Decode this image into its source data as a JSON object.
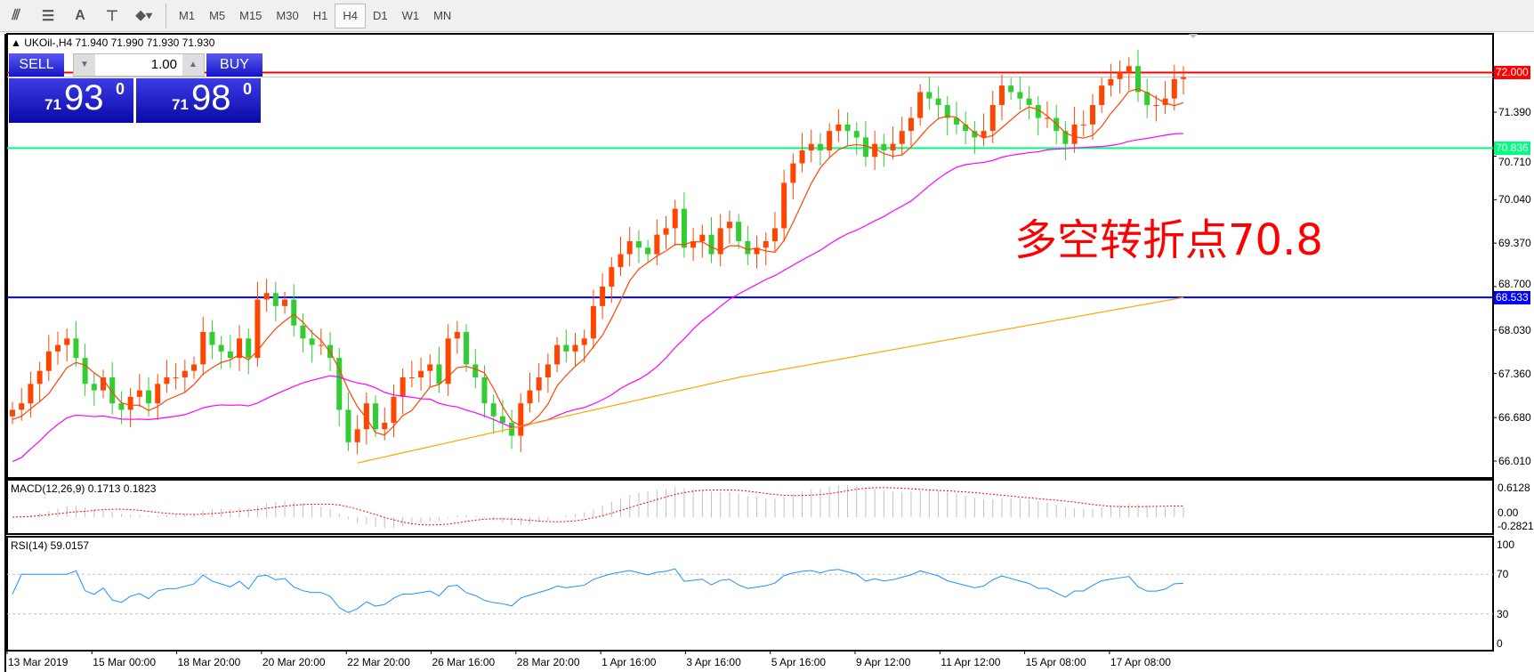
{
  "toolbar": {
    "icons": [
      "indicators-icon",
      "fibonacci-icon",
      "text-icon",
      "text-label-icon",
      "arrows-icon"
    ],
    "text_icon": "A",
    "timeframes": [
      "M1",
      "M5",
      "M15",
      "M30",
      "H1",
      "H4",
      "D1",
      "W1",
      "MN"
    ],
    "active": "H4"
  },
  "chart": {
    "header": "UKOil-,H4  71.940 71.990 71.930 71.930",
    "symbol": "UKOil-",
    "period": "H4"
  },
  "trade": {
    "sell": "SELL",
    "buy": "BUY",
    "lot": "1.00",
    "sell_small": "71",
    "sell_big": "93",
    "sell_sup": "0",
    "buy_small": "71",
    "buy_big": "98",
    "buy_sup": "0"
  },
  "price_axis": {
    "ticks": [
      "71.390",
      "70.710",
      "70.040",
      "69.370",
      "68.700",
      "68.030",
      "67.360",
      "66.680",
      "66.010"
    ]
  },
  "lines": [
    {
      "label": "72.000",
      "value": 72.0,
      "color": "#ff0000"
    },
    {
      "label": "70.836",
      "value": 70.836,
      "color": "#00ff7f"
    },
    {
      "label": "68.533",
      "value": 68.533,
      "color": "#0000ff"
    }
  ],
  "annotation": "多空转折点70.8",
  "macd": {
    "label": "MACD(12,26,9) 0.1713 0.1823",
    "ticks": [
      "0.6128",
      "0.00",
      "-0.2821"
    ]
  },
  "rsi": {
    "label": "RSI(14) 59.0157",
    "ticks": [
      "100",
      "70",
      "30",
      "0"
    ]
  },
  "date_axis": [
    "13 Mar 2019",
    "15 Mar 00:00",
    "18 Mar 20:00",
    "20 Mar 20:00",
    "22 Mar 20:00",
    "26 Mar 16:00",
    "28 Mar 20:00",
    "1 Apr 16:00",
    "3 Apr 16:00",
    "5 Apr 16:00",
    "9 Apr 12:00",
    "11 Apr 12:00",
    "15 Apr 08:00",
    "17 Apr 08:00"
  ],
  "colors": {
    "up": "#ff4500",
    "down": "#32cd32",
    "ma_fast": "#ff4500",
    "ma_mid": "#ff00ff",
    "ma_slow": "#ffa500",
    "rsi": "#1e90ff",
    "macd_signal": "#ff0000",
    "macd_hist": "#c0c0c0"
  },
  "chart_data": {
    "type": "candlestick",
    "closes": [
      66.8,
      66.9,
      67.2,
      67.4,
      67.7,
      67.8,
      67.9,
      67.6,
      67.2,
      67.1,
      67.3,
      66.9,
      66.8,
      67.0,
      67.1,
      66.9,
      67.2,
      67.3,
      67.3,
      67.4,
      67.5,
      68.0,
      67.8,
      67.7,
      67.6,
      67.9,
      67.6,
      68.5,
      68.6,
      68.4,
      68.5,
      68.1,
      67.9,
      67.8,
      67.8,
      67.6,
      66.8,
      66.3,
      66.5,
      66.9,
      66.5,
      66.6,
      67.0,
      67.3,
      67.3,
      67.4,
      67.5,
      67.2,
      67.9,
      68.0,
      67.5,
      67.3,
      66.9,
      66.7,
      66.6,
      66.4,
      66.9,
      67.1,
      67.3,
      67.5,
      67.8,
      67.7,
      67.8,
      67.9,
      68.4,
      68.7,
      69.0,
      69.2,
      69.4,
      69.3,
      69.2,
      69.5,
      69.6,
      69.9,
      69.3,
      69.4,
      69.5,
      69.2,
      69.6,
      69.7,
      69.4,
      69.2,
      69.3,
      69.4,
      69.6,
      70.3,
      70.6,
      70.8,
      70.9,
      70.8,
      71.1,
      71.2,
      71.1,
      71.0,
      70.7,
      70.9,
      70.8,
      70.9,
      71.1,
      71.3,
      71.7,
      71.6,
      71.5,
      71.3,
      71.2,
      71.1,
      71.0,
      71.1,
      71.5,
      71.8,
      71.7,
      71.6,
      71.5,
      71.3,
      71.3,
      71.1,
      70.9,
      71.2,
      71.2,
      71.5,
      71.8,
      71.9,
      72.0,
      72.1,
      71.7,
      71.5,
      71.5,
      71.6,
      71.9,
      71.93
    ],
    "ma_slow_anchors": [
      [
        38,
        65.98
      ],
      [
        80,
        67.3
      ],
      [
        129,
        68.533
      ]
    ],
    "ylim": [
      65.8,
      72.4
    ]
  }
}
